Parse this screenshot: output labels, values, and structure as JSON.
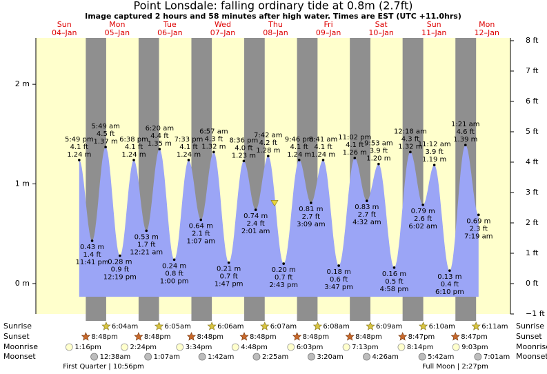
{
  "title": "Point Lonsdale: falling  ordinary tide at 0.8m (2.7ft)",
  "subtitle": "Image captured 2 hours and 58 minutes after high water. Times are EST (UTC +11.0hrs)",
  "chart_data": {
    "type": "tide",
    "days": [
      {
        "weekday": "Sun",
        "date": "04–Jan"
      },
      {
        "weekday": "Mon",
        "date": "05–Jan"
      },
      {
        "weekday": "Tue",
        "date": "06–Jan"
      },
      {
        "weekday": "Wed",
        "date": "07–Jan"
      },
      {
        "weekday": "Thu",
        "date": "08–Jan"
      },
      {
        "weekday": "Fri",
        "date": "09–Jan"
      },
      {
        "weekday": "Sat",
        "date": "10–Jan"
      },
      {
        "weekday": "Sun",
        "date": "11–Jan"
      },
      {
        "weekday": "Mon",
        "date": "12–Jan"
      }
    ],
    "ylim": [
      -0.305,
      2.465
    ],
    "yticks": [
      {
        "value": 0,
        "label": "0 m"
      },
      {
        "value": 1,
        "label": "1 m"
      },
      {
        "value": 2,
        "label": "2 m"
      }
    ],
    "y2lim": [
      -1,
      8.09
    ],
    "y2ticks": [
      {
        "value": -1,
        "label": "−1 ft"
      },
      {
        "value": 0,
        "label": "0 ft"
      },
      {
        "value": 1,
        "label": "1 ft"
      },
      {
        "value": 2,
        "label": "2 ft"
      },
      {
        "value": 3,
        "label": "3 ft"
      },
      {
        "value": 4,
        "label": "4 ft"
      },
      {
        "value": 5,
        "label": "5 ft"
      },
      {
        "value": 6,
        "label": "6 ft"
      },
      {
        "value": 7,
        "label": "7 ft"
      },
      {
        "value": 8,
        "label": "8 ft"
      }
    ],
    "tides": {
      "color": "#9ba5f6",
      "times": [
        "5:49 pm",
        "11:41 pm",
        "5:49 am",
        "12:19 pm",
        "6:38 pm",
        "12:21 am",
        "6:20 am",
        "1:00 pm",
        "7:33 pm",
        "1:07 am",
        "6:57 am",
        "1:47 pm",
        "8:36 pm",
        "2:01 am",
        "7:42 am",
        "2:43 pm",
        "9:46 pm",
        "3:09 am",
        "8:41 am",
        "3:47 pm",
        "11:02 pm",
        "4:32 am",
        "9:53 am",
        "4:58 pm",
        "12:18 am",
        "6:02 am",
        "11:12 am",
        "6:10 pm",
        "1:21 am",
        "7:19 am"
      ],
      "values": [
        1.24,
        0.43,
        1.37,
        0.28,
        1.24,
        0.53,
        1.35,
        0.24,
        1.24,
        0.64,
        1.32,
        0.21,
        1.23,
        0.74,
        1.28,
        0.2,
        1.24,
        0.81,
        1.24,
        0.18,
        1.26,
        0.83,
        1.2,
        0.16,
        1.32,
        0.79,
        1.19,
        0.13,
        1.39,
        0.69
      ],
      "value_labels": [
        "1.24 m",
        "0.43 m",
        "1.37 m",
        "0.28 m",
        "1.24 m",
        "0.53 m",
        "1.35 m",
        "0.24 m",
        "1.24 m",
        "0.64 m",
        "1.32 m",
        "0.21 m",
        "1.23 m",
        "0.74 m",
        "1.28 m",
        "0.20 m",
        "1.24 m",
        "0.81 m",
        "1.24 m",
        "0.18 m",
        "1.26 m",
        "0.83 m",
        "1.20 m",
        "0.16 m",
        "1.32 m",
        "0.79 m",
        "1.19 m",
        "0.13 m",
        "1.39 m",
        "0.69 m"
      ],
      "feet_labels": [
        "4.1 ft",
        "1.4 ft",
        "4.5 ft",
        "0.9 ft",
        "4.1 ft",
        "1.7 ft",
        "4.4 ft",
        "0.8 ft",
        "4.1 ft",
        "2.1 ft",
        "4.3 ft",
        "0.7 ft",
        "4.0 ft",
        "2.4 ft",
        "4.2 ft",
        "0.7 ft",
        "4.1 ft",
        "2.7 ft",
        "4.1 ft",
        "0.6 ft",
        "4.1 ft",
        "2.7 ft",
        "3.9 ft",
        "0.5 ft",
        "4.3 ft",
        "2.6 ft",
        "3.9 ft",
        "0.4 ft",
        "4.6 ft",
        "2.3 ft"
      ]
    },
    "current_level": 0.8,
    "marker_color": "#e8d53a"
  },
  "almanac": {
    "rows": [
      {
        "label": "Sunrise",
        "times": [
          "6:04am",
          "6:05am",
          "6:06am",
          "6:07am",
          "6:08am",
          "6:09am",
          "6:10am",
          "6:11am"
        ]
      },
      {
        "label": "Sunset",
        "times": [
          "8:48pm",
          "8:48pm",
          "8:48pm",
          "8:48pm",
          "8:48pm",
          "8:48pm",
          "8:47pm",
          "8:47pm"
        ]
      },
      {
        "label": "Moonrise",
        "times": [
          "1:16pm",
          "2:24pm",
          "3:34pm",
          "4:48pm",
          "6:03pm",
          "7:13pm",
          "8:14pm",
          "9:03pm"
        ]
      },
      {
        "label": "Moonset",
        "times": [
          "12:38am",
          "1:07am",
          "1:42am",
          "2:25am",
          "3:20am",
          "4:26am",
          "5:42am",
          "7:01am"
        ]
      }
    ],
    "phases": [
      "First Quarter | 10:56pm",
      "Full Moon | 2:27pm"
    ]
  }
}
